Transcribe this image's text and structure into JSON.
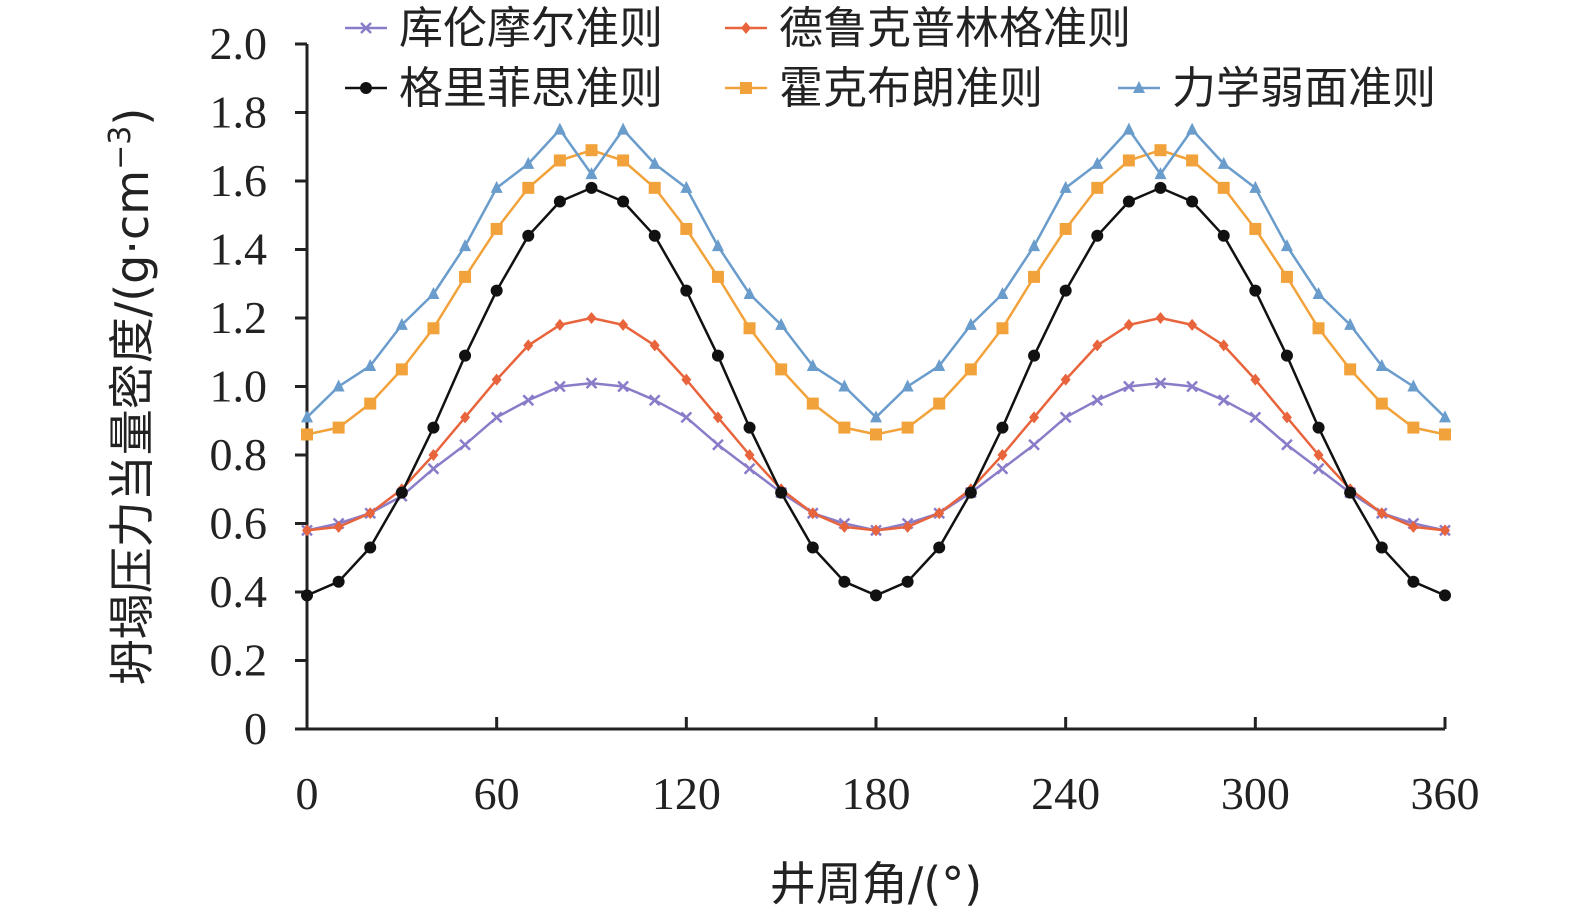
{
  "chart_data": {
    "type": "line",
    "xlabel": "井周角/(°)",
    "ylabel": "坍塌压力当量密度/(g·cm",
    "ylabel_sup": "−3",
    "ylabel_close": ")",
    "xlim": [
      0,
      360
    ],
    "ylim": [
      0,
      2.0
    ],
    "x_ticks": [
      0,
      60,
      120,
      180,
      240,
      300,
      360
    ],
    "y_ticks": [
      0,
      0.2,
      0.4,
      0.6,
      0.8,
      1.0,
      1.2,
      1.4,
      1.6,
      1.8,
      2.0
    ],
    "y_tick_labels": [
      "0",
      "0.2",
      "0.4",
      "0.6",
      "0.8",
      "1.0",
      "1.2",
      "1.4",
      "1.6",
      "1.8",
      "2.0"
    ],
    "x_tick_labels": [
      "0",
      "60",
      "120",
      "180",
      "240",
      "300",
      "360"
    ],
    "grid": false,
    "legend_position": "top",
    "x": [
      0,
      10,
      20,
      30,
      40,
      50,
      60,
      70,
      80,
      90,
      100,
      110,
      120,
      130,
      140,
      150,
      160,
      170,
      180,
      190,
      200,
      210,
      220,
      230,
      240,
      250,
      260,
      270,
      280,
      290,
      300,
      310,
      320,
      330,
      340,
      350,
      360
    ],
    "series": [
      {
        "name": "库伦摩尔准则",
        "color": "#8a7cc8",
        "marker": "x",
        "values": [
          0.58,
          0.6,
          0.63,
          0.68,
          0.76,
          0.83,
          0.91,
          0.96,
          1.0,
          1.01,
          1.0,
          0.96,
          0.91,
          0.83,
          0.76,
          0.69,
          0.63,
          0.6,
          0.58,
          0.6,
          0.63,
          0.69,
          0.76,
          0.83,
          0.91,
          0.96,
          1.0,
          1.01,
          1.0,
          0.96,
          0.91,
          0.83,
          0.76,
          0.69,
          0.63,
          0.6,
          0.58
        ]
      },
      {
        "name": "德鲁克普林格准则",
        "color": "#e8643c",
        "marker": "diamond",
        "values": [
          0.58,
          0.59,
          0.63,
          0.7,
          0.8,
          0.91,
          1.02,
          1.12,
          1.18,
          1.2,
          1.18,
          1.12,
          1.02,
          0.91,
          0.8,
          0.7,
          0.63,
          0.59,
          0.58,
          0.59,
          0.63,
          0.7,
          0.8,
          0.91,
          1.02,
          1.12,
          1.18,
          1.2,
          1.18,
          1.12,
          1.02,
          0.91,
          0.8,
          0.7,
          0.63,
          0.59,
          0.58
        ]
      },
      {
        "name": "格里菲思准则",
        "color": "#111111",
        "marker": "circle",
        "values": [
          0.39,
          0.43,
          0.53,
          0.69,
          0.88,
          1.09,
          1.28,
          1.44,
          1.54,
          1.58,
          1.54,
          1.44,
          1.28,
          1.09,
          0.88,
          0.69,
          0.53,
          0.43,
          0.39,
          0.43,
          0.53,
          0.69,
          0.88,
          1.09,
          1.28,
          1.44,
          1.54,
          1.58,
          1.54,
          1.44,
          1.28,
          1.09,
          0.88,
          0.69,
          0.53,
          0.43,
          0.39
        ]
      },
      {
        "name": "霍克布朗准则",
        "color": "#f2a23a",
        "marker": "square",
        "values": [
          0.86,
          0.88,
          0.95,
          1.05,
          1.17,
          1.32,
          1.46,
          1.58,
          1.66,
          1.69,
          1.66,
          1.58,
          1.46,
          1.32,
          1.17,
          1.05,
          0.95,
          0.88,
          0.86,
          0.88,
          0.95,
          1.05,
          1.17,
          1.32,
          1.46,
          1.58,
          1.66,
          1.69,
          1.66,
          1.58,
          1.46,
          1.32,
          1.17,
          1.05,
          0.95,
          0.88,
          0.86
        ]
      },
      {
        "name": "力学弱面准则",
        "color": "#6a9ccc",
        "marker": "triangle",
        "values": [
          0.91,
          1.0,
          1.06,
          1.18,
          1.27,
          1.41,
          1.58,
          1.65,
          1.75,
          1.62,
          1.75,
          1.65,
          1.58,
          1.41,
          1.27,
          1.18,
          1.06,
          1.0,
          0.91,
          1.0,
          1.06,
          1.18,
          1.27,
          1.41,
          1.58,
          1.65,
          1.75,
          1.62,
          1.75,
          1.65,
          1.58,
          1.41,
          1.27,
          1.18,
          1.06,
          1.0,
          0.91
        ]
      }
    ]
  }
}
